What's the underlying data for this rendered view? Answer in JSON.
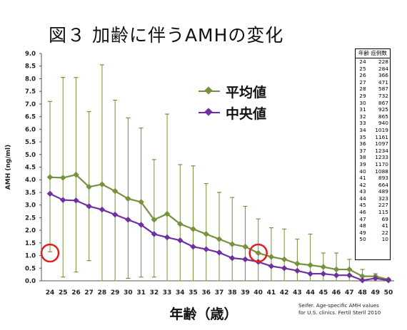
{
  "figure_title": "図３ 加齢に伴うAMHの変化",
  "chart_data": {
    "type": "line",
    "xlabel": "年齢（歳）",
    "ylabel": "AMH (ng/ml)",
    "ylim": [
      0,
      9
    ],
    "yticks": [
      "0.0",
      "0.5",
      "1.0",
      "1.5",
      "2.0",
      "2.5",
      "3.0",
      "3.5",
      "4.0",
      "4.5",
      "5.0",
      "5.5",
      "6.0",
      "6.5",
      "7.0",
      "7.5",
      "8.0",
      "8.5",
      "9.0"
    ],
    "categories": [
      "24",
      "25",
      "26",
      "27",
      "28",
      "29",
      "30",
      "31",
      "32",
      "33",
      "34",
      "35",
      "36",
      "37",
      "38",
      "39",
      "40",
      "41",
      "42",
      "43",
      "44",
      "45",
      "46",
      "47",
      "48",
      "49",
      "50"
    ],
    "series": [
      {
        "name": "平均値",
        "color": "#76923c",
        "values": [
          4.1,
          4.08,
          4.2,
          3.72,
          3.82,
          3.55,
          3.25,
          3.12,
          2.42,
          2.65,
          2.25,
          2.05,
          1.85,
          1.65,
          1.45,
          1.35,
          1.1,
          0.95,
          0.85,
          0.68,
          0.62,
          0.55,
          0.45,
          0.45,
          0.18,
          0.18,
          0.05
        ]
      },
      {
        "name": "中央値",
        "color": "#7030a0",
        "values": [
          3.45,
          3.2,
          3.18,
          2.95,
          2.82,
          2.62,
          2.42,
          2.22,
          1.85,
          1.72,
          1.6,
          1.35,
          1.25,
          1.12,
          0.9,
          0.85,
          0.75,
          0.58,
          0.5,
          0.4,
          0.28,
          0.28,
          0.22,
          0.22,
          0.02,
          0.1,
          0.02
        ]
      }
    ],
    "range_bars": {
      "color": "#76923c",
      "high": [
        7.1,
        8.05,
        8.05,
        6.7,
        8.55,
        7.15,
        6.45,
        6.05,
        4.8,
        6.6,
        4.6,
        4.55,
        3.85,
        3.5,
        3.3,
        2.95,
        2.45,
        2.1,
        2.05,
        1.65,
        1.85,
        1.1,
        1.1,
        0.85,
        0.45,
        0.28,
        0.1
      ],
      "low": [
        1.15,
        0.15,
        0.35,
        0.8,
        0.0,
        0.0,
        0.1,
        0.15,
        0.15,
        0.0,
        0.0,
        0.0,
        0.0,
        0.0,
        0.0,
        0.0,
        0.0,
        0.0,
        0.0,
        0.0,
        0.0,
        0.0,
        0.0,
        0.0,
        0.0,
        0.0,
        0.0
      ]
    },
    "highlights": [
      {
        "category": "24",
        "value": 1.1,
        "color": "#e02020"
      },
      {
        "category": "40",
        "value": 1.1,
        "color": "#e02020"
      }
    ],
    "grid": false,
    "legend_position": "top-center"
  },
  "count_table": {
    "header": "年齢 症例数",
    "rows": [
      {
        "age": "24",
        "n": "228"
      },
      {
        "age": "25",
        "n": "284"
      },
      {
        "age": "26",
        "n": "366"
      },
      {
        "age": "27",
        "n": "471"
      },
      {
        "age": "28",
        "n": "587"
      },
      {
        "age": "29",
        "n": "732"
      },
      {
        "age": "30",
        "n": "867"
      },
      {
        "age": "31",
        "n": "925"
      },
      {
        "age": "32",
        "n": "865"
      },
      {
        "age": "33",
        "n": "940"
      },
      {
        "age": "34",
        "n": "1019"
      },
      {
        "age": "35",
        "n": "1161"
      },
      {
        "age": "36",
        "n": "1097"
      },
      {
        "age": "37",
        "n": "1234"
      },
      {
        "age": "38",
        "n": "1233"
      },
      {
        "age": "39",
        "n": "1170"
      },
      {
        "age": "40",
        "n": "1088"
      },
      {
        "age": "41",
        "n": "893"
      },
      {
        "age": "42",
        "n": "664"
      },
      {
        "age": "43",
        "n": "489"
      },
      {
        "age": "44",
        "n": "323"
      },
      {
        "age": "45",
        "n": "227"
      },
      {
        "age": "46",
        "n": "115"
      },
      {
        "age": "47",
        "n": "69"
      },
      {
        "age": "48",
        "n": "41"
      },
      {
        "age": "49",
        "n": "22"
      },
      {
        "age": "50",
        "n": "10"
      }
    ]
  },
  "source_lines": [
    "Seifer. Age-specific AMH values",
    "for U.S. clinics. Fertil Steril 2010"
  ]
}
